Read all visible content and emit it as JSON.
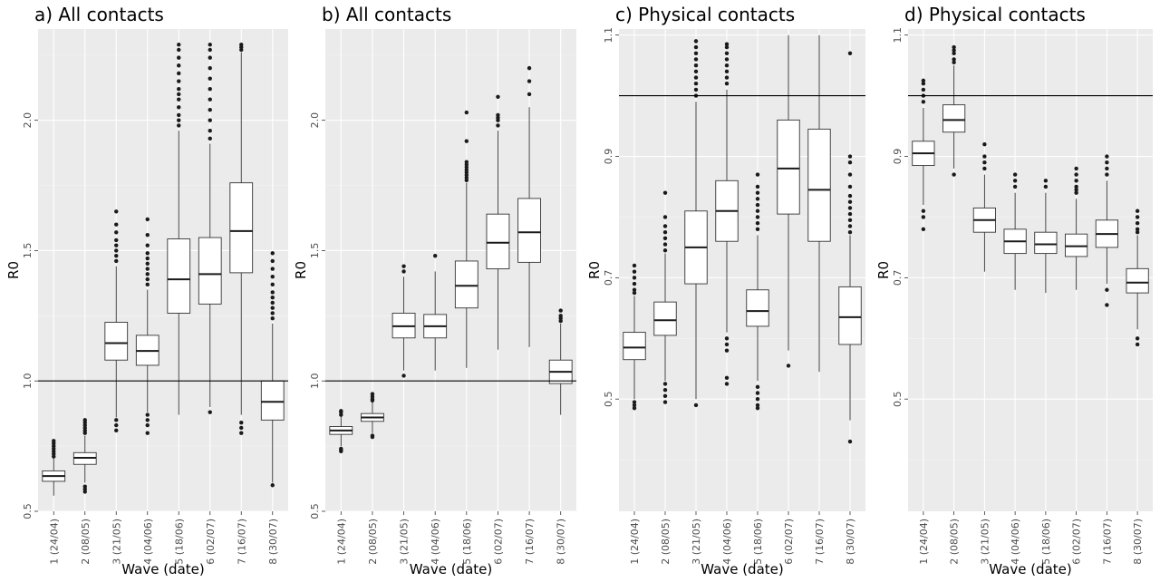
{
  "chart_data": [
    {
      "type": "box",
      "title": "a) All contacts",
      "xlabel": "Wave (date)",
      "ylabel": "R0",
      "reference_line": 1.0,
      "ylim": [
        0.5,
        2.35
      ],
      "yticks": [
        0.5,
        1.0,
        1.5,
        2.0
      ],
      "categories": [
        "1 (24/04)",
        "2 (08/05)",
        "3 (21/05)",
        "4 (04/06)",
        "5 (18/06)",
        "6 (02/07)",
        "7 (16/07)",
        "8 (30/07)"
      ],
      "boxes": [
        {
          "q1": 0.615,
          "median": 0.635,
          "q3": 0.655,
          "whisker_low": 0.56,
          "whisker_high": 0.705,
          "outliers_low": [],
          "outliers_high": [
            0.71,
            0.72,
            0.73,
            0.74,
            0.75,
            0.76,
            0.77
          ]
        },
        {
          "q1": 0.68,
          "median": 0.705,
          "q3": 0.725,
          "whisker_low": 0.61,
          "whisker_high": 0.79,
          "outliers_low": [
            0.575,
            0.585,
            0.595
          ],
          "outliers_high": [
            0.8,
            0.81,
            0.82,
            0.83,
            0.84,
            0.85
          ]
        },
        {
          "q1": 1.08,
          "median": 1.145,
          "q3": 1.225,
          "whisker_low": 0.86,
          "whisker_high": 1.44,
          "outliers_low": [
            0.81,
            0.83,
            0.85
          ],
          "outliers_high": [
            1.46,
            1.48,
            1.5,
            1.52,
            1.54,
            1.57,
            1.6,
            1.65
          ]
        },
        {
          "q1": 1.06,
          "median": 1.115,
          "q3": 1.175,
          "whisker_low": 0.88,
          "whisker_high": 1.35,
          "outliers_low": [
            0.8,
            0.83,
            0.85,
            0.87
          ],
          "outliers_high": [
            1.37,
            1.39,
            1.41,
            1.43,
            1.45,
            1.47,
            1.49,
            1.52,
            1.56,
            1.62
          ]
        },
        {
          "q1": 1.26,
          "median": 1.39,
          "q3": 1.545,
          "whisker_low": 0.87,
          "whisker_high": 1.96,
          "outliers_low": [],
          "outliers_high": [
            1.98,
            2.0,
            2.02,
            2.05,
            2.08,
            2.1,
            2.12,
            2.15,
            2.18,
            2.21,
            2.24,
            2.27,
            2.29
          ]
        },
        {
          "q1": 1.295,
          "median": 1.41,
          "q3": 1.55,
          "whisker_low": 0.9,
          "whisker_high": 1.91,
          "outliers_low": [
            0.88
          ],
          "outliers_high": [
            1.93,
            1.96,
            2.0,
            2.04,
            2.08,
            2.12,
            2.16,
            2.2,
            2.24,
            2.27,
            2.29
          ]
        },
        {
          "q1": 1.415,
          "median": 1.575,
          "q3": 1.76,
          "whisker_low": 0.87,
          "whisker_high": 2.26,
          "outliers_low": [
            0.8,
            0.82,
            0.84
          ],
          "outliers_high": [
            2.27,
            2.28,
            2.29
          ]
        },
        {
          "q1": 0.85,
          "median": 0.92,
          "q3": 1.0,
          "whisker_low": 0.61,
          "whisker_high": 1.22,
          "outliers_low": [
            0.6
          ],
          "outliers_high": [
            1.24,
            1.26,
            1.28,
            1.3,
            1.32,
            1.34,
            1.37,
            1.4,
            1.43,
            1.46,
            1.49
          ]
        }
      ]
    },
    {
      "type": "box",
      "title": "b) All contacts",
      "xlabel": "Wave (date)",
      "ylabel": "R0",
      "reference_line": 1.0,
      "ylim": [
        0.5,
        2.35
      ],
      "yticks": [
        0.5,
        1.0,
        1.5,
        2.0
      ],
      "categories": [
        "1 (24/04)",
        "2 (08/05)",
        "3 (21/05)",
        "4 (04/06)",
        "5 (18/06)",
        "6 (02/07)",
        "7 (16/07)",
        "8 (30/07)"
      ],
      "boxes": [
        {
          "q1": 0.795,
          "median": 0.81,
          "q3": 0.825,
          "whisker_low": 0.75,
          "whisker_high": 0.865,
          "outliers_low": [
            0.73,
            0.735,
            0.74
          ],
          "outliers_high": [
            0.87,
            0.88,
            0.885
          ]
        },
        {
          "q1": 0.845,
          "median": 0.86,
          "q3": 0.875,
          "whisker_low": 0.8,
          "whisker_high": 0.92,
          "outliers_low": [
            0.785,
            0.79
          ],
          "outliers_high": [
            0.925,
            0.93,
            0.94,
            0.95
          ]
        },
        {
          "q1": 1.165,
          "median": 1.21,
          "q3": 1.26,
          "whisker_low": 1.04,
          "whisker_high": 1.4,
          "outliers_low": [
            1.02
          ],
          "outliers_high": [
            1.42,
            1.44
          ]
        },
        {
          "q1": 1.165,
          "median": 1.21,
          "q3": 1.255,
          "whisker_low": 1.04,
          "whisker_high": 1.42,
          "outliers_low": [],
          "outliers_high": [
            1.48
          ]
        },
        {
          "q1": 1.28,
          "median": 1.365,
          "q3": 1.46,
          "whisker_low": 1.05,
          "whisker_high": 1.76,
          "outliers_low": [],
          "outliers_high": [
            1.77,
            1.78,
            1.79,
            1.8,
            1.81,
            1.82,
            1.83,
            1.84,
            1.92,
            2.03
          ]
        },
        {
          "q1": 1.43,
          "median": 1.53,
          "q3": 1.64,
          "whisker_low": 1.12,
          "whisker_high": 1.96,
          "outliers_low": [],
          "outliers_high": [
            1.98,
            2.0,
            2.01,
            2.02,
            2.09
          ]
        },
        {
          "q1": 1.455,
          "median": 1.57,
          "q3": 1.7,
          "whisker_low": 1.13,
          "whisker_high": 2.05,
          "outliers_low": [],
          "outliers_high": [
            2.1,
            2.15,
            2.2
          ]
        },
        {
          "q1": 0.99,
          "median": 1.035,
          "q3": 1.08,
          "whisker_low": 0.87,
          "whisker_high": 1.22,
          "outliers_low": [],
          "outliers_high": [
            1.23,
            1.24,
            1.25,
            1.27
          ]
        }
      ]
    },
    {
      "type": "box",
      "title": "c) Physical contacts",
      "xlabel": "Wave (date)",
      "ylabel": "R0",
      "reference_line": 1.0,
      "ylim": [
        0.315,
        1.11
      ],
      "yticks": [
        0.5,
        0.7,
        0.9,
        1.1
      ],
      "categories": [
        "1 (24/04)",
        "2 (08/05)",
        "3 (21/05)",
        "4 (04/06)",
        "5 (18/06)",
        "6 (02/07)",
        "7 (16/07)",
        "8 (30/07)"
      ],
      "boxes": [
        {
          "q1": 0.565,
          "median": 0.585,
          "q3": 0.61,
          "whisker_low": 0.5,
          "whisker_high": 0.67,
          "outliers_low": [
            0.485,
            0.49,
            0.495
          ],
          "outliers_high": [
            0.675,
            0.68,
            0.69,
            0.7,
            0.71,
            0.72
          ]
        },
        {
          "q1": 0.605,
          "median": 0.63,
          "q3": 0.66,
          "whisker_low": 0.53,
          "whisker_high": 0.74,
          "outliers_low": [
            0.495,
            0.505,
            0.515,
            0.525
          ],
          "outliers_high": [
            0.745,
            0.755,
            0.765,
            0.775,
            0.785,
            0.8,
            0.84
          ]
        },
        {
          "q1": 0.69,
          "median": 0.75,
          "q3": 0.81,
          "whisker_low": 0.5,
          "whisker_high": 0.99,
          "outliers_low": [
            0.49
          ],
          "outliers_high": [
            1.0,
            1.01,
            1.02,
            1.03,
            1.04,
            1.05,
            1.06,
            1.07,
            1.08,
            1.09
          ]
        },
        {
          "q1": 0.76,
          "median": 0.81,
          "q3": 0.86,
          "whisker_low": 0.61,
          "whisker_high": 1.01,
          "outliers_low": [
            0.525,
            0.535,
            0.58,
            0.59,
            0.6
          ],
          "outliers_high": [
            1.02,
            1.03,
            1.04,
            1.05,
            1.06,
            1.07,
            1.08,
            1.085
          ]
        },
        {
          "q1": 0.62,
          "median": 0.645,
          "q3": 0.68,
          "whisker_low": 0.53,
          "whisker_high": 0.77,
          "outliers_low": [
            0.485,
            0.49,
            0.5,
            0.51,
            0.52
          ],
          "outliers_high": [
            0.78,
            0.79,
            0.8,
            0.81,
            0.82,
            0.83,
            0.84,
            0.85,
            0.87
          ]
        },
        {
          "q1": 0.805,
          "median": 0.88,
          "q3": 0.96,
          "whisker_low": 0.58,
          "whisker_high": 1.1,
          "outliers_low": [
            0.555
          ],
          "outliers_high": []
        },
        {
          "q1": 0.76,
          "median": 0.845,
          "q3": 0.945,
          "whisker_low": 0.545,
          "whisker_high": 1.1,
          "outliers_low": [],
          "outliers_high": []
        },
        {
          "q1": 0.59,
          "median": 0.635,
          "q3": 0.685,
          "whisker_low": 0.465,
          "whisker_high": 0.77,
          "outliers_low": [
            0.43
          ],
          "outliers_high": [
            0.775,
            0.785,
            0.795,
            0.805,
            0.815,
            0.825,
            0.835,
            0.85,
            0.87,
            0.89,
            0.9,
            1.07
          ]
        }
      ]
    },
    {
      "type": "box",
      "title": "d) Physical contacts",
      "xlabel": "Wave (date)",
      "ylabel": "R0",
      "reference_line": 1.0,
      "ylim": [
        0.315,
        1.11
      ],
      "yticks": [
        0.5,
        0.7,
        0.9,
        1.1
      ],
      "categories": [
        "1 (24/04)",
        "2 (08/05)",
        "3 (21/05)",
        "4 (04/06)",
        "5 (18/06)",
        "6 (02/07)",
        "7 (16/07)",
        "8 (30/07)"
      ],
      "boxes": [
        {
          "q1": 0.885,
          "median": 0.905,
          "q3": 0.925,
          "whisker_low": 0.82,
          "whisker_high": 0.98,
          "outliers_low": [
            0.78,
            0.8,
            0.81
          ],
          "outliers_high": [
            0.99,
            1.0,
            1.01,
            1.02,
            1.025
          ]
        },
        {
          "q1": 0.94,
          "median": 0.96,
          "q3": 0.985,
          "whisker_low": 0.88,
          "whisker_high": 1.05,
          "outliers_low": [
            0.87
          ],
          "outliers_high": [
            1.055,
            1.06,
            1.07,
            1.075,
            1.08
          ]
        },
        {
          "q1": 0.775,
          "median": 0.795,
          "q3": 0.815,
          "whisker_low": 0.71,
          "whisker_high": 0.87,
          "outliers_low": [],
          "outliers_high": [
            0.88,
            0.89,
            0.9,
            0.92
          ]
        },
        {
          "q1": 0.74,
          "median": 0.76,
          "q3": 0.78,
          "whisker_low": 0.68,
          "whisker_high": 0.84,
          "outliers_low": [],
          "outliers_high": [
            0.85,
            0.86,
            0.87
          ]
        },
        {
          "q1": 0.74,
          "median": 0.755,
          "q3": 0.775,
          "whisker_low": 0.675,
          "whisker_high": 0.84,
          "outliers_low": [],
          "outliers_high": [
            0.85,
            0.86
          ]
        },
        {
          "q1": 0.735,
          "median": 0.752,
          "q3": 0.772,
          "whisker_low": 0.68,
          "whisker_high": 0.83,
          "outliers_low": [],
          "outliers_high": [
            0.84,
            0.845,
            0.85,
            0.86,
            0.87,
            0.88
          ]
        },
        {
          "q1": 0.75,
          "median": 0.772,
          "q3": 0.795,
          "whisker_low": 0.69,
          "whisker_high": 0.86,
          "outliers_low": [
            0.655,
            0.68
          ],
          "outliers_high": [
            0.87,
            0.88,
            0.89,
            0.9
          ]
        },
        {
          "q1": 0.675,
          "median": 0.692,
          "q3": 0.715,
          "whisker_low": 0.615,
          "whisker_high": 0.77,
          "outliers_low": [
            0.59,
            0.6
          ],
          "outliers_high": [
            0.775,
            0.78,
            0.79,
            0.8,
            0.81
          ]
        }
      ]
    }
  ]
}
